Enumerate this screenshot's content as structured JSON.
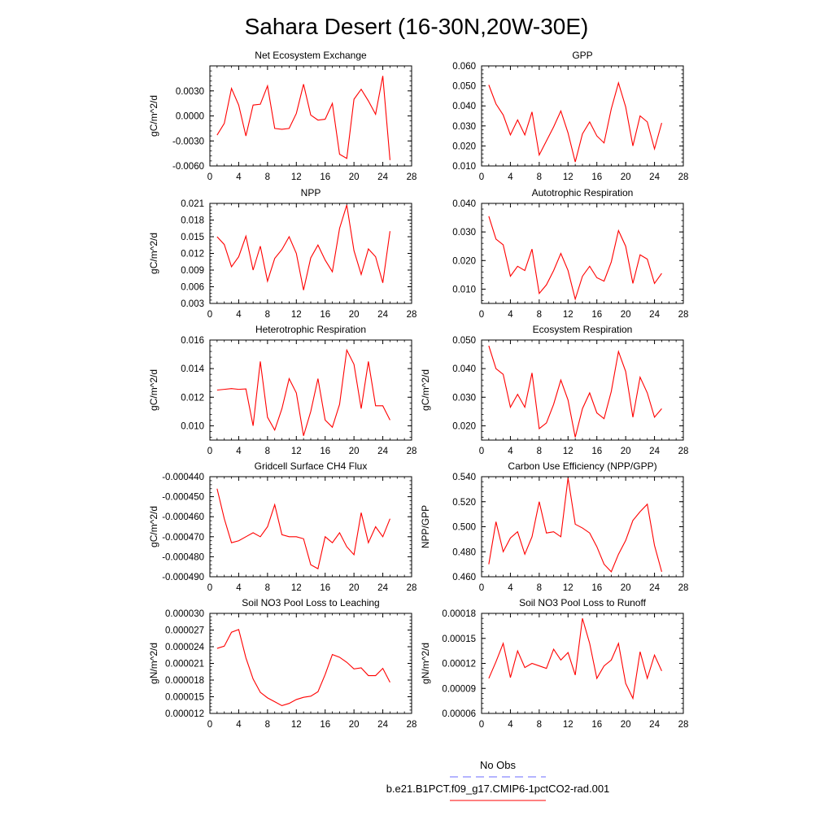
{
  "figure_title": "Sahara Desert (16-30N,20W-30E)",
  "colors": {
    "model_line": "#ff0000",
    "obs_line": "#6a6aff",
    "axis": "#000000"
  },
  "legend": {
    "obs_label": "No Obs",
    "model_label": "b.e21.B1PCT.f09_g17.CMIP6-1pctCO2-rad.001"
  },
  "chart_data": [
    {
      "type": "line",
      "title": "Net Ecosystem Exchange",
      "ylabel": "gC/m^2/d",
      "xlim": [
        0,
        28
      ],
      "ylim": [
        -0.006,
        0.006
      ],
      "x_ticks": [
        0,
        4,
        8,
        12,
        16,
        20,
        24,
        28
      ],
      "y_ticks": [
        -0.006,
        -0.003,
        0.0,
        0.003
      ],
      "y_ticklabels": [
        "-0.0060",
        "-0.0030",
        "0.0000",
        "0.0030"
      ],
      "x": [
        1,
        2,
        3,
        4,
        5,
        6,
        7,
        8,
        9,
        10,
        11,
        12,
        13,
        14,
        15,
        16,
        17,
        18,
        19,
        20,
        21,
        22,
        23,
        24,
        25
      ],
      "values": [
        -0.0023,
        -0.0009,
        0.0033,
        0.0013,
        -0.0024,
        0.0013,
        0.0014,
        0.0036,
        -0.0015,
        -0.0016,
        -0.0015,
        0.0003,
        0.0038,
        0.0001,
        -0.0005,
        -0.0004,
        0.0015,
        -0.0046,
        -0.0051,
        0.002,
        0.0032,
        0.0018,
        0.0002,
        0.0048,
        -0.0053
      ]
    },
    {
      "type": "line",
      "title": "GPP",
      "ylabel": "",
      "xlim": [
        0,
        28
      ],
      "ylim": [
        0.01,
        0.06
      ],
      "x_ticks": [
        0,
        4,
        8,
        12,
        16,
        20,
        24,
        28
      ],
      "y_ticks": [
        0.01,
        0.02,
        0.03,
        0.04,
        0.05,
        0.06
      ],
      "y_ticklabels": [
        "0.010",
        "0.020",
        "0.030",
        "0.040",
        "0.050",
        "0.060"
      ],
      "x": [
        1,
        2,
        3,
        4,
        5,
        6,
        7,
        8,
        9,
        10,
        11,
        12,
        13,
        14,
        15,
        16,
        17,
        18,
        19,
        20,
        21,
        22,
        23,
        24,
        25
      ],
      "values": [
        0.0505,
        0.041,
        0.0355,
        0.0255,
        0.033,
        0.0255,
        0.037,
        0.0155,
        0.0225,
        0.0295,
        0.0375,
        0.0265,
        0.012,
        0.026,
        0.032,
        0.025,
        0.0215,
        0.0385,
        0.0515,
        0.0395,
        0.02,
        0.035,
        0.032,
        0.0185,
        0.0315
      ]
    },
    {
      "type": "line",
      "title": "NPP",
      "ylabel": "gC/m^2/d",
      "xlim": [
        0,
        28
      ],
      "ylim": [
        0.003,
        0.021
      ],
      "x_ticks": [
        0,
        4,
        8,
        12,
        16,
        20,
        24,
        28
      ],
      "y_ticks": [
        0.003,
        0.006,
        0.009,
        0.012,
        0.015,
        0.018,
        0.021
      ],
      "y_ticklabels": [
        "0.003",
        "0.006",
        "0.009",
        "0.012",
        "0.015",
        "0.018",
        "0.021"
      ],
      "x": [
        1,
        2,
        3,
        4,
        5,
        6,
        7,
        8,
        9,
        10,
        11,
        12,
        13,
        14,
        15,
        16,
        17,
        18,
        19,
        20,
        21,
        22,
        23,
        24,
        25
      ],
      "values": [
        0.015,
        0.0136,
        0.0096,
        0.0114,
        0.0151,
        0.009,
        0.0133,
        0.007,
        0.0111,
        0.0127,
        0.015,
        0.012,
        0.0054,
        0.0112,
        0.0135,
        0.0108,
        0.0087,
        0.0165,
        0.0207,
        0.0125,
        0.0082,
        0.0128,
        0.0114,
        0.0067,
        0.016
      ]
    },
    {
      "type": "line",
      "title": "Autotrophic Respiration",
      "ylabel": "",
      "xlim": [
        0,
        28
      ],
      "ylim": [
        0.005,
        0.04
      ],
      "x_ticks": [
        0,
        4,
        8,
        12,
        16,
        20,
        24,
        28
      ],
      "y_ticks": [
        0.01,
        0.02,
        0.03,
        0.04
      ],
      "y_ticklabels": [
        "0.010",
        "0.020",
        "0.030",
        "0.040"
      ],
      "x": [
        1,
        2,
        3,
        4,
        5,
        6,
        7,
        8,
        9,
        10,
        11,
        12,
        13,
        14,
        15,
        16,
        17,
        18,
        19,
        20,
        21,
        22,
        23,
        24,
        25
      ],
      "values": [
        0.0355,
        0.0275,
        0.0255,
        0.0145,
        0.018,
        0.0165,
        0.024,
        0.0085,
        0.0115,
        0.0165,
        0.0225,
        0.0165,
        0.0065,
        0.0145,
        0.018,
        0.014,
        0.0128,
        0.0195,
        0.0305,
        0.025,
        0.012,
        0.022,
        0.0205,
        0.012,
        0.0155
      ]
    },
    {
      "type": "line",
      "title": "Heterotrophic Respiration",
      "ylabel": "gC/m^2/d",
      "xlim": [
        0,
        28
      ],
      "ylim": [
        0.009,
        0.016
      ],
      "x_ticks": [
        0,
        4,
        8,
        12,
        16,
        20,
        24,
        28
      ],
      "y_ticks": [
        0.01,
        0.012,
        0.014,
        0.016
      ],
      "y_ticklabels": [
        "0.010",
        "0.012",
        "0.014",
        "0.016"
      ],
      "x": [
        1,
        2,
        3,
        4,
        5,
        6,
        7,
        8,
        9,
        10,
        11,
        12,
        13,
        14,
        15,
        16,
        17,
        18,
        19,
        20,
        21,
        22,
        23,
        24,
        25
      ],
      "values": [
        0.0125,
        0.01255,
        0.0126,
        0.01255,
        0.01258,
        0.01,
        0.0145,
        0.0106,
        0.0097,
        0.0112,
        0.0133,
        0.0123,
        0.0093,
        0.011,
        0.0133,
        0.0104,
        0.0099,
        0.0115,
        0.0153,
        0.0143,
        0.0112,
        0.0145,
        0.0114,
        0.0114,
        0.0104
      ]
    },
    {
      "type": "line",
      "title": "Ecosystem Respiration",
      "ylabel": "gC/m^2/d",
      "xlim": [
        0,
        28
      ],
      "ylim": [
        0.015,
        0.05
      ],
      "x_ticks": [
        0,
        4,
        8,
        12,
        16,
        20,
        24,
        28
      ],
      "y_ticks": [
        0.02,
        0.03,
        0.04,
        0.05
      ],
      "y_ticklabels": [
        "0.020",
        "0.030",
        "0.040",
        "0.050"
      ],
      "x": [
        1,
        2,
        3,
        4,
        5,
        6,
        7,
        8,
        9,
        10,
        11,
        12,
        13,
        14,
        15,
        16,
        17,
        18,
        19,
        20,
        21,
        22,
        23,
        24,
        25
      ],
      "values": [
        0.048,
        0.04,
        0.038,
        0.0265,
        0.031,
        0.0265,
        0.0385,
        0.019,
        0.021,
        0.0275,
        0.036,
        0.029,
        0.016,
        0.026,
        0.0315,
        0.0245,
        0.0225,
        0.032,
        0.046,
        0.039,
        0.023,
        0.037,
        0.0315,
        0.023,
        0.026
      ]
    },
    {
      "type": "line",
      "title": "Gridcell Surface CH4 Flux",
      "ylabel": "gC/m^2/d",
      "xlim": [
        0,
        28
      ],
      "ylim": [
        -0.00049,
        -0.00044
      ],
      "x_ticks": [
        0,
        4,
        8,
        12,
        16,
        20,
        24,
        28
      ],
      "y_ticks": [
        -0.00049,
        -0.00048,
        -0.00047,
        -0.00046,
        -0.00045,
        -0.00044
      ],
      "y_ticklabels": [
        "-0.000490",
        "-0.000480",
        "-0.000470",
        "-0.000460",
        "-0.000450",
        "-0.000440"
      ],
      "x": [
        1,
        2,
        3,
        4,
        5,
        6,
        7,
        8,
        9,
        10,
        11,
        12,
        13,
        14,
        15,
        16,
        17,
        18,
        19,
        20,
        21,
        22,
        23,
        24,
        25
      ],
      "values": [
        -0.000446,
        -0.000461,
        -0.000473,
        -0.000472,
        -0.00047,
        -0.000468,
        -0.00047,
        -0.000465,
        -0.000454,
        -0.000469,
        -0.00047,
        -0.00047,
        -0.000471,
        -0.000484,
        -0.000486,
        -0.00047,
        -0.000473,
        -0.000468,
        -0.000475,
        -0.000479,
        -0.000458,
        -0.000473,
        -0.000465,
        -0.00047,
        -0.000461
      ]
    },
    {
      "type": "line",
      "title": "Carbon Use Efficiency (NPP/GPP)",
      "ylabel": "NPP/GPP",
      "xlim": [
        0,
        28
      ],
      "ylim": [
        0.46,
        0.54
      ],
      "x_ticks": [
        0,
        4,
        8,
        12,
        16,
        20,
        24,
        28
      ],
      "y_ticks": [
        0.46,
        0.48,
        0.5,
        0.52,
        0.54
      ],
      "y_ticklabels": [
        "0.460",
        "0.480",
        "0.500",
        "0.520",
        "0.540"
      ],
      "x": [
        1,
        2,
        3,
        4,
        5,
        6,
        7,
        8,
        9,
        10,
        11,
        12,
        13,
        14,
        15,
        16,
        17,
        18,
        19,
        20,
        21,
        22,
        23,
        24,
        25
      ],
      "values": [
        0.47,
        0.504,
        0.48,
        0.491,
        0.496,
        0.478,
        0.492,
        0.52,
        0.495,
        0.496,
        0.492,
        0.539,
        0.502,
        0.499,
        0.495,
        0.484,
        0.47,
        0.464,
        0.478,
        0.489,
        0.505,
        0.512,
        0.518,
        0.485,
        0.464
      ]
    },
    {
      "type": "line",
      "title": "Soil NO3 Pool Loss to Leaching",
      "ylabel": "gN/m^2/d",
      "xlim": [
        0,
        28
      ],
      "ylim": [
        1.2e-05,
        3e-05
      ],
      "x_ticks": [
        0,
        4,
        8,
        12,
        16,
        20,
        24,
        28
      ],
      "y_ticks": [
        1.2e-05,
        1.5e-05,
        1.8e-05,
        2.1e-05,
        2.4e-05,
        2.7e-05,
        3e-05
      ],
      "y_ticklabels": [
        "0.000012",
        "0.000015",
        "0.000018",
        "0.000021",
        "0.000024",
        "0.000027",
        "0.000030"
      ],
      "x": [
        1,
        2,
        3,
        4,
        5,
        6,
        7,
        8,
        9,
        10,
        11,
        12,
        13,
        14,
        15,
        16,
        17,
        18,
        19,
        20,
        21,
        22,
        23,
        24,
        25
      ],
      "values": [
        2.37e-05,
        2.41e-05,
        2.66e-05,
        2.71e-05,
        2.2e-05,
        1.82e-05,
        1.58e-05,
        1.48e-05,
        1.41e-05,
        1.34e-05,
        1.38e-05,
        1.45e-05,
        1.49e-05,
        1.51e-05,
        1.59e-05,
        1.9e-05,
        2.26e-05,
        2.21e-05,
        2.12e-05,
        2e-05,
        2.02e-05,
        1.88e-05,
        1.88e-05,
        2.01e-05,
        1.76e-05
      ]
    },
    {
      "type": "line",
      "title": "Soil NO3 Pool Loss to Runoff",
      "ylabel": "gN/m^2/d",
      "xlim": [
        0,
        28
      ],
      "ylim": [
        6e-05,
        0.00018
      ],
      "x_ticks": [
        0,
        4,
        8,
        12,
        16,
        20,
        24,
        28
      ],
      "y_ticks": [
        6e-05,
        9e-05,
        0.00012,
        0.00015,
        0.00018
      ],
      "y_ticklabels": [
        "0.00006",
        "0.00009",
        "0.00012",
        "0.00015",
        "0.00018"
      ],
      "x": [
        1,
        2,
        3,
        4,
        5,
        6,
        7,
        8,
        9,
        10,
        11,
        12,
        13,
        14,
        15,
        16,
        17,
        18,
        19,
        20,
        21,
        22,
        23,
        24,
        25
      ],
      "values": [
        0.000102,
        0.000122,
        0.000144,
        0.000103,
        0.000135,
        0.000115,
        0.00012,
        0.000117,
        0.000114,
        0.000137,
        0.000124,
        0.000133,
        0.000106,
        0.000174,
        0.000144,
        0.000102,
        0.000117,
        0.000124,
        0.000144,
        9.6e-05,
        7.8e-05,
        0.000134,
        0.000102,
        0.00013,
        0.000111
      ]
    }
  ]
}
